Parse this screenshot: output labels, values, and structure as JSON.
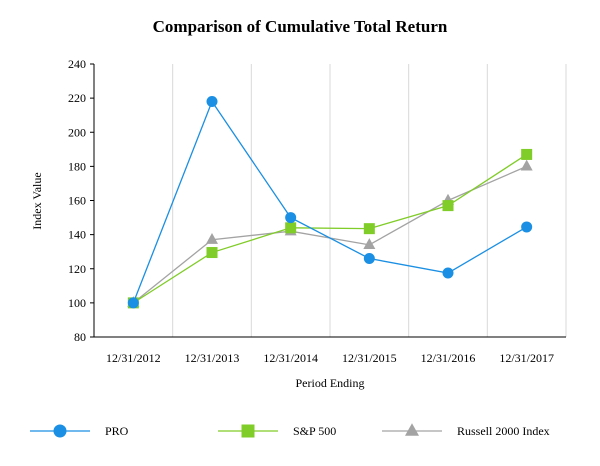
{
  "chart_data": {
    "type": "line",
    "title": "Comparison of Cumulative Total Return",
    "xlabel": "Period Ending",
    "ylabel": "Index Value",
    "categories": [
      "12/31/2012",
      "12/31/2013",
      "12/31/2014",
      "12/31/2015",
      "12/31/2016",
      "12/31/2017"
    ],
    "ylim": [
      80,
      240
    ],
    "yticks": [
      80,
      100,
      120,
      140,
      160,
      180,
      200,
      220,
      240
    ],
    "grid": "vertical",
    "legend_position": "bottom",
    "series": [
      {
        "name": "PRO",
        "marker": "circle",
        "color": "#1a8fe3",
        "values": [
          100,
          218,
          150,
          126,
          117.5,
          144.5
        ]
      },
      {
        "name": "S&P 500",
        "marker": "square",
        "color": "#80cc28",
        "values": [
          100,
          129.5,
          144,
          143.5,
          157,
          187
        ]
      },
      {
        "name": "Russell 2000 Index",
        "marker": "triangle",
        "color": "#a3a3a3",
        "values": [
          100,
          137,
          142,
          134,
          160,
          180
        ]
      }
    ]
  }
}
